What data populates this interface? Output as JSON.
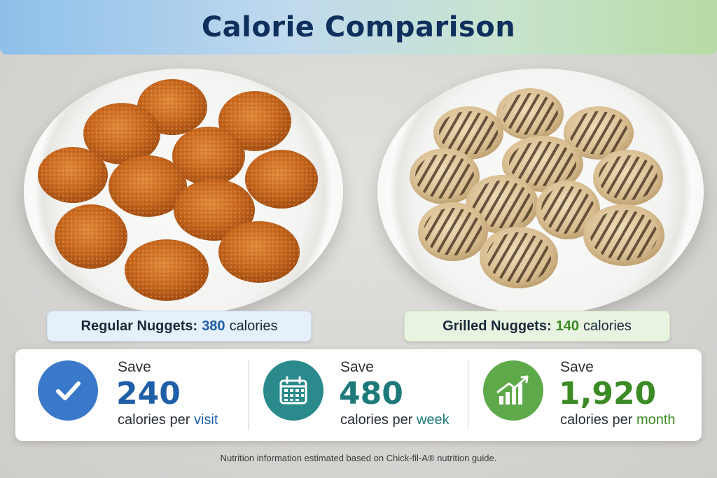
{
  "title": "Calorie Comparison",
  "regular": {
    "label": "Regular Nuggets:",
    "calories": "380",
    "unit": "calories"
  },
  "grilled": {
    "label": "Grilled Nuggets:",
    "calories": "140",
    "unit": "calories"
  },
  "savings": [
    {
      "icon": "checkmark-icon",
      "word": "Save",
      "value": "240",
      "prefix": "calories per",
      "period": "visit",
      "color": "#1f5fa8"
    },
    {
      "icon": "calendar-icon",
      "word": "Save",
      "value": "480",
      "prefix": "calories per",
      "period": "week",
      "color": "#1e7a7a"
    },
    {
      "icon": "growth-chart-icon",
      "word": "Save",
      "value": "1,920",
      "prefix": "calories per",
      "period": "month",
      "color": "#3b8a24"
    }
  ],
  "footnote": "Nutrition information estimated based on Chick-fil-A® nutrition guide."
}
